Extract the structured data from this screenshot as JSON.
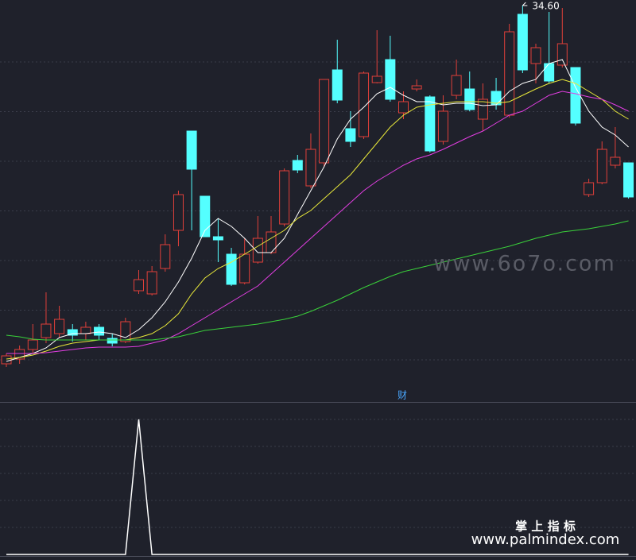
{
  "chart_data": [
    {
      "type": "candlestick",
      "ylim": [
        14.68,
        34.88
      ],
      "ygrid": [
        16.76,
        19.26,
        21.76,
        24.26,
        26.76,
        29.26,
        31.76
      ],
      "up_color": "#e0403a",
      "down_color": "#54ffff",
      "open": [
        16.56,
        16.8,
        17.28,
        17.88,
        18.08,
        18.28,
        18.08,
        18.4,
        17.84,
        17.68,
        20.24,
        20.08,
        21.36,
        23.28,
        28.28,
        25.0,
        22.96,
        22.08,
        20.64,
        21.68,
        22.16,
        23.6,
        26.8,
        25.52,
        26.68,
        31.36,
        28.4,
        28.0,
        30.72,
        31.88,
        29.2,
        30.4,
        30.0,
        27.76,
        30.08,
        30.4,
        28.88,
        30.28,
        29.08,
        34.16,
        31.68,
        31.68,
        31.6,
        31.48,
        25.08,
        25.68,
        26.56,
        26.68
      ],
      "high": [
        17.08,
        17.48,
        18.56,
        20.16,
        19.48,
        18.56,
        18.68,
        18.56,
        18.08,
        18.88,
        21.28,
        21.48,
        23.08,
        25.28,
        28.28,
        25.0,
        23.88,
        22.4,
        22.88,
        24.0,
        24.0,
        26.4,
        27.08,
        28.16,
        30.88,
        32.88,
        29.28,
        31.28,
        33.36,
        33.08,
        30.28,
        30.88,
        30.08,
        30.08,
        31.88,
        31.28,
        30.68,
        30.96,
        33.68,
        34.6,
        32.68,
        34.28,
        34.48,
        31.48,
        25.88,
        27.76,
        28.48,
        26.68
      ],
      "low": [
        16.4,
        16.56,
        17.08,
        17.6,
        17.88,
        17.68,
        17.76,
        17.76,
        17.44,
        17.6,
        20.08,
        20.0,
        21.2,
        22.48,
        23.28,
        22.96,
        21.68,
        20.48,
        20.56,
        21.6,
        22.08,
        23.48,
        26.16,
        25.4,
        26.48,
        29.68,
        27.48,
        27.88,
        30.68,
        29.76,
        28.88,
        30.28,
        27.2,
        27.6,
        29.88,
        29.28,
        28.28,
        29.36,
        28.96,
        31.2,
        30.68,
        30.68,
        31.48,
        28.56,
        24.96,
        25.6,
        26.4,
        24.88
      ],
      "close": [
        16.96,
        17.28,
        17.76,
        18.56,
        18.8,
        18.0,
        18.4,
        18.0,
        17.6,
        18.68,
        20.8,
        21.2,
        22.56,
        25.08,
        26.36,
        22.96,
        22.8,
        20.56,
        22.08,
        22.88,
        23.2,
        26.28,
        26.32,
        27.36,
        30.88,
        29.84,
        27.76,
        31.2,
        31.04,
        29.88,
        29.76,
        30.56,
        27.28,
        29.28,
        31.08,
        29.36,
        29.88,
        29.6,
        33.28,
        31.36,
        32.48,
        30.8,
        32.68,
        28.68,
        25.68,
        27.36,
        26.96,
        24.96
      ],
      "series": [
        {
          "color": "#ffffff",
          "values": [
            16.68,
            16.88,
            17.08,
            17.36,
            17.88,
            18.08,
            18.08,
            18.16,
            18.08,
            17.88,
            18.28,
            18.88,
            19.68,
            20.68,
            21.88,
            23.28,
            23.88,
            23.48,
            22.88,
            22.16,
            22.16,
            22.88,
            24.08,
            25.28,
            26.48,
            27.88,
            28.88,
            29.48,
            30.16,
            30.48,
            30.08,
            29.76,
            29.76,
            29.6,
            29.68,
            29.68,
            29.56,
            29.6,
            30.28,
            30.68,
            30.88,
            31.68,
            31.88,
            30.48,
            29.28,
            28.48,
            28.08,
            27.48
          ]
        },
        {
          "color": "#e8e83a",
          "values": [
            16.8,
            16.88,
            17.0,
            17.2,
            17.44,
            17.6,
            17.68,
            17.76,
            17.76,
            17.76,
            17.88,
            18.08,
            18.48,
            19.08,
            20.08,
            20.88,
            21.36,
            21.68,
            22.08,
            22.48,
            22.88,
            23.28,
            23.88,
            24.28,
            24.88,
            25.48,
            26.08,
            26.88,
            27.68,
            28.48,
            29.08,
            29.48,
            29.6,
            29.68,
            29.76,
            29.76,
            29.76,
            29.68,
            29.76,
            30.08,
            30.4,
            30.68,
            30.88,
            30.68,
            30.28,
            29.88,
            29.28,
            28.88
          ]
        },
        {
          "color": "#e23ee2",
          "values": [
            17.08,
            17.08,
            17.08,
            17.12,
            17.2,
            17.28,
            17.36,
            17.4,
            17.4,
            17.4,
            17.44,
            17.6,
            17.76,
            18.08,
            18.48,
            18.88,
            19.28,
            19.68,
            20.08,
            20.48,
            21.08,
            21.68,
            22.28,
            22.88,
            23.48,
            24.08,
            24.68,
            25.28,
            25.76,
            26.16,
            26.56,
            26.88,
            27.08,
            27.36,
            27.68,
            28.0,
            28.28,
            28.68,
            29.08,
            29.28,
            29.68,
            30.08,
            30.28,
            30.16,
            30.0,
            29.88,
            29.6,
            29.28
          ]
        },
        {
          "color": "#3ad23a",
          "values": [
            18.0,
            17.92,
            17.8,
            17.76,
            17.76,
            17.76,
            17.76,
            17.76,
            17.76,
            17.76,
            17.76,
            17.76,
            17.84,
            17.92,
            18.08,
            18.24,
            18.32,
            18.4,
            18.48,
            18.56,
            18.68,
            18.8,
            18.96,
            19.2,
            19.48,
            19.76,
            20.08,
            20.4,
            20.68,
            20.96,
            21.2,
            21.36,
            21.52,
            21.68,
            21.84,
            22.0,
            22.16,
            22.32,
            22.48,
            22.68,
            22.88,
            23.04,
            23.2,
            23.28,
            23.36,
            23.48,
            23.6,
            23.76
          ]
        }
      ],
      "high_label": "34.60",
      "center_label": "财"
    },
    {
      "type": "line",
      "ylim": [
        0,
        1.12
      ],
      "ygrid": [
        0.2,
        0.4,
        0.6,
        0.8,
        1.0
      ],
      "color": "#ffffff",
      "values": [
        0,
        0,
        0,
        0,
        0,
        0,
        0,
        0,
        0,
        0,
        1,
        0,
        0,
        0,
        0,
        0,
        0,
        0,
        0,
        0,
        0,
        0,
        0,
        0,
        0,
        0,
        0,
        0,
        0,
        0,
        0,
        0,
        0,
        0,
        0,
        0,
        0,
        0,
        0,
        0,
        0,
        0,
        0,
        0,
        0,
        0,
        0,
        0
      ]
    }
  ],
  "watermarks": [
    "www.6o7o.com",
    "掌 上 指 标",
    "www.palmindex.com"
  ]
}
